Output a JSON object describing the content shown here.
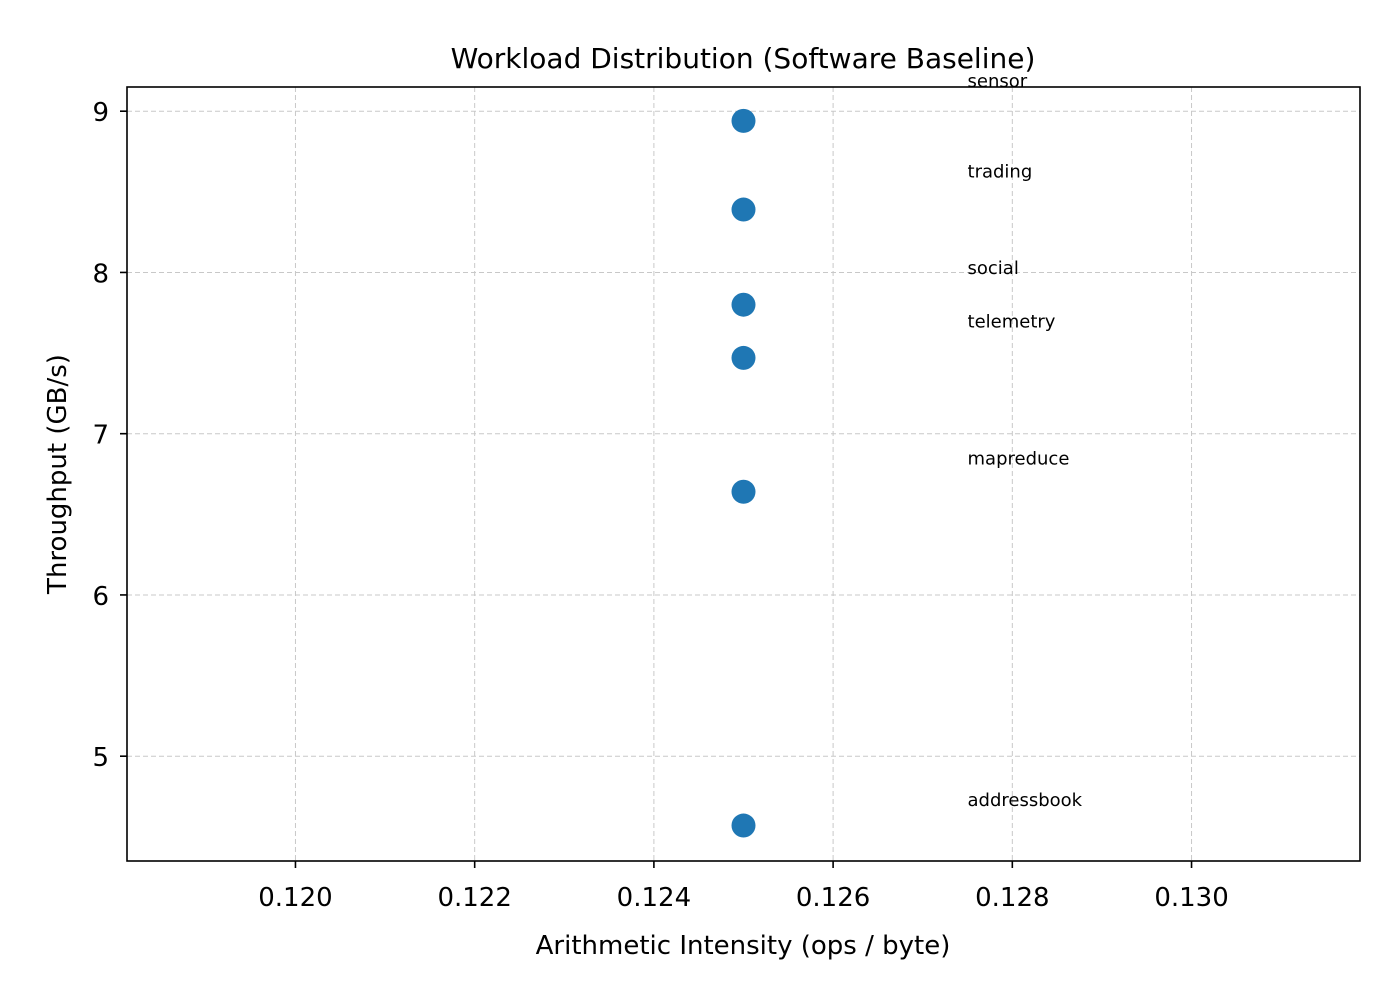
{
  "chart_data": {
    "type": "scatter",
    "title": "Workload Distribution (Software Baseline)",
    "xlabel": "Arithmetic Intensity (ops / byte)",
    "ylabel": "Throughput (GB/s)",
    "xlim": [
      0.11812,
      0.13188
    ],
    "ylim": [
      4.35,
      9.15
    ],
    "xticks": [
      {
        "value": 0.12,
        "label": "0.120"
      },
      {
        "value": 0.122,
        "label": "0.122"
      },
      {
        "value": 0.124,
        "label": "0.124"
      },
      {
        "value": 0.126,
        "label": "0.126"
      },
      {
        "value": 0.128,
        "label": "0.128"
      },
      {
        "value": 0.13,
        "label": "0.130"
      }
    ],
    "yticks": [
      {
        "value": 5,
        "label": "5"
      },
      {
        "value": 6,
        "label": "6"
      },
      {
        "value": 7,
        "label": "7"
      },
      {
        "value": 8,
        "label": "8"
      },
      {
        "value": 9,
        "label": "9"
      }
    ],
    "grid": true,
    "marker_color": "#1f77b4",
    "points": [
      {
        "x": 0.125,
        "y": 8.94,
        "label": "sensor"
      },
      {
        "x": 0.125,
        "y": 8.39,
        "label": "trading"
      },
      {
        "x": 0.125,
        "y": 7.8,
        "label": "social"
      },
      {
        "x": 0.125,
        "y": 7.47,
        "label": "telemetry"
      },
      {
        "x": 0.125,
        "y": 6.64,
        "label": "mapreduce"
      },
      {
        "x": 0.125,
        "y": 4.57,
        "label": "addressbook"
      }
    ],
    "annotations": [
      {
        "text": "sensor",
        "x": 0.1275,
        "y": 9.15
      },
      {
        "text": "trading",
        "x": 0.1275,
        "y": 8.59
      },
      {
        "text": "social",
        "x": 0.1275,
        "y": 7.99
      },
      {
        "text": "telemetry",
        "x": 0.1275,
        "y": 7.66
      },
      {
        "text": "mapreduce",
        "x": 0.1275,
        "y": 6.81
      },
      {
        "text": "addressbook",
        "x": 0.1275,
        "y": 4.69
      }
    ]
  }
}
